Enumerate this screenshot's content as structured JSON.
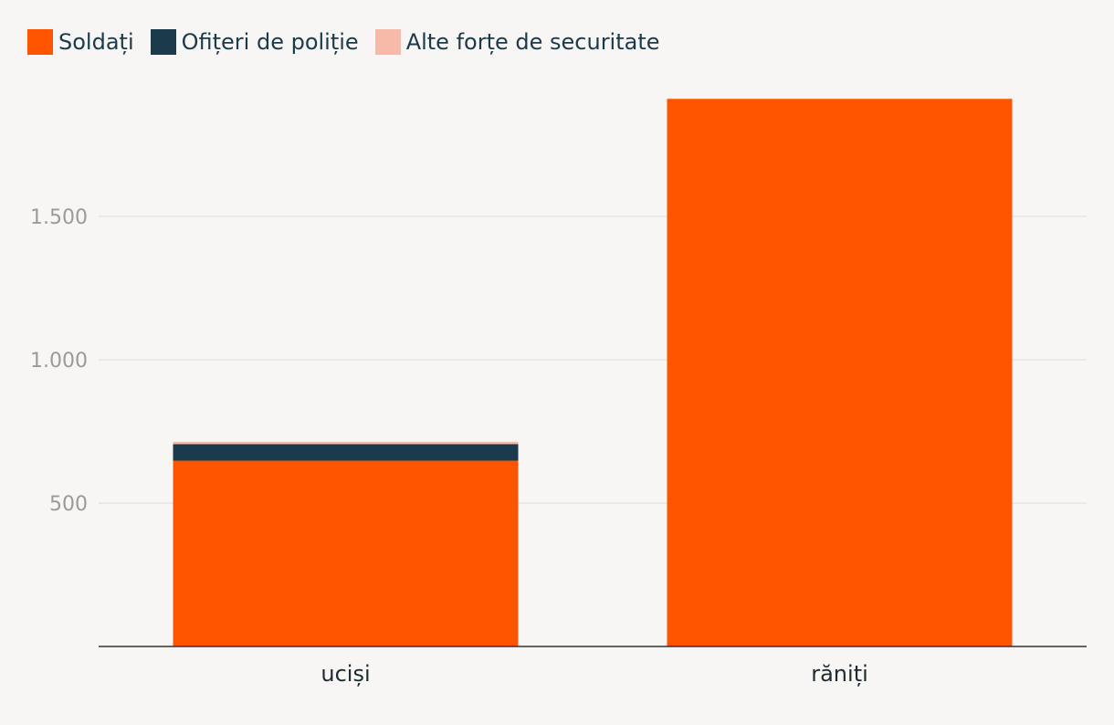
{
  "chart_data": {
    "type": "bar",
    "stacked": true,
    "categories": [
      "uciși",
      "răniți"
    ],
    "series": [
      {
        "name": "Soldați",
        "color": "#ff5500",
        "values": [
          648,
          1910
        ]
      },
      {
        "name": "Ofițeri de poliție",
        "color": "#1b3a4b",
        "values": [
          58,
          0
        ]
      },
      {
        "name": "Alte forțe de securitate",
        "color": "#f7b9a8",
        "values": [
          8,
          0
        ]
      }
    ],
    "ylim": [
      0,
      2000
    ],
    "yticks": [
      500,
      1000,
      1500
    ],
    "ytick_labels": [
      "500",
      "1.000",
      "1.500"
    ],
    "grid": true,
    "legend_position": "top-left"
  }
}
